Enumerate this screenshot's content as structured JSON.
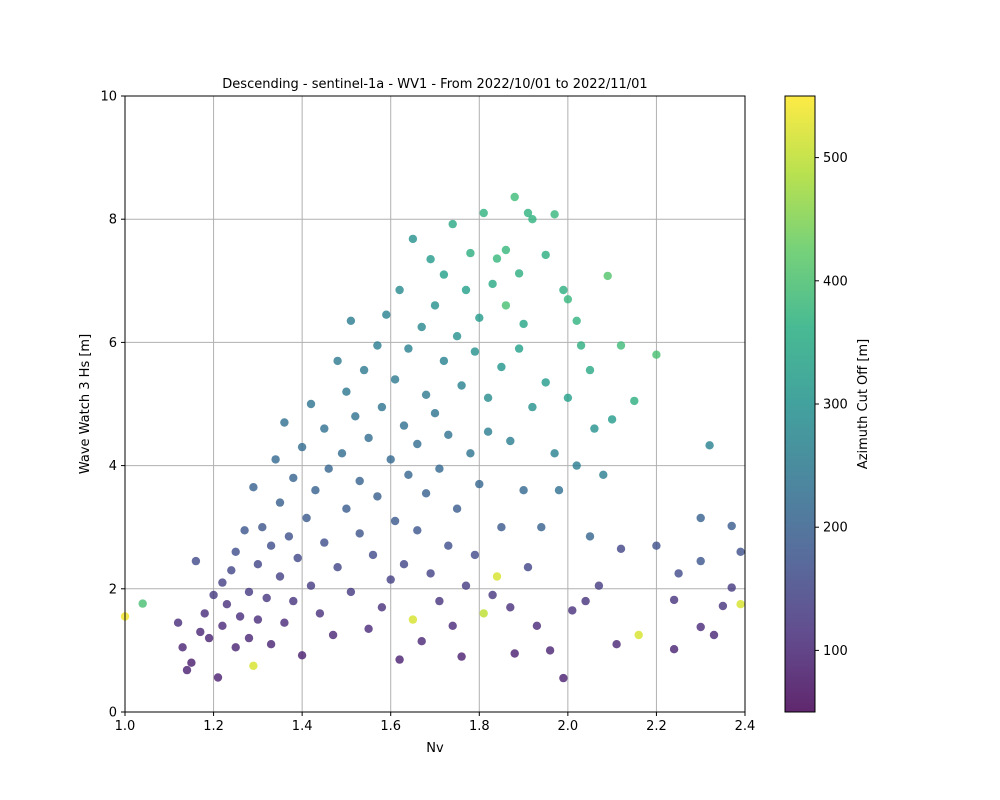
{
  "chart_data": {
    "type": "scatter",
    "title": "Descending - sentinel-1a - WV1 - From 2022/10/01 to 2022/11/01",
    "xlabel": "Nv",
    "ylabel": "Wave Watch 3 Hs [m]",
    "xlim": [
      1.0,
      2.4
    ],
    "ylim": [
      0,
      10
    ],
    "xticks": [
      "1.0",
      "1.2",
      "1.4",
      "1.6",
      "1.8",
      "2.0",
      "2.2",
      "2.4"
    ],
    "yticks": [
      "0",
      "2",
      "4",
      "6",
      "8",
      "10"
    ],
    "grid": true,
    "colormap": "viridis",
    "colorbar": {
      "label": "Azimuth Cut Off [m]",
      "range": [
        50,
        550
      ],
      "ticks": [
        "100",
        "200",
        "300",
        "400",
        "500"
      ]
    },
    "points": [
      [
        1.0,
        1.55,
        540
      ],
      [
        1.04,
        1.76,
        400
      ],
      [
        1.12,
        1.45,
        110
      ],
      [
        1.13,
        1.05,
        95
      ],
      [
        1.14,
        0.68,
        90
      ],
      [
        1.15,
        0.8,
        85
      ],
      [
        1.16,
        2.45,
        160
      ],
      [
        1.17,
        1.3,
        100
      ],
      [
        1.18,
        1.6,
        110
      ],
      [
        1.19,
        1.2,
        95
      ],
      [
        1.2,
        1.9,
        130
      ],
      [
        1.21,
        0.56,
        90
      ],
      [
        1.22,
        1.4,
        105
      ],
      [
        1.22,
        2.1,
        140
      ],
      [
        1.23,
        1.75,
        115
      ],
      [
        1.24,
        2.3,
        150
      ],
      [
        1.25,
        1.05,
        95
      ],
      [
        1.25,
        2.6,
        165
      ],
      [
        1.26,
        1.55,
        110
      ],
      [
        1.27,
        2.95,
        180
      ],
      [
        1.28,
        1.95,
        130
      ],
      [
        1.28,
        1.2,
        100
      ],
      [
        1.29,
        3.65,
        200
      ],
      [
        1.29,
        0.75,
        520
      ],
      [
        1.3,
        2.4,
        150
      ],
      [
        1.3,
        1.5,
        110
      ],
      [
        1.31,
        3.0,
        175
      ],
      [
        1.32,
        1.85,
        125
      ],
      [
        1.33,
        2.7,
        165
      ],
      [
        1.33,
        1.1,
        95
      ],
      [
        1.34,
        4.1,
        215
      ],
      [
        1.35,
        2.2,
        140
      ],
      [
        1.35,
        3.4,
        195
      ],
      [
        1.36,
        4.7,
        230
      ],
      [
        1.36,
        1.45,
        105
      ],
      [
        1.37,
        2.85,
        170
      ],
      [
        1.38,
        3.8,
        205
      ],
      [
        1.38,
        1.8,
        120
      ],
      [
        1.39,
        2.5,
        155
      ],
      [
        1.4,
        4.3,
        220
      ],
      [
        1.4,
        0.92,
        90
      ],
      [
        1.41,
        3.15,
        185
      ],
      [
        1.42,
        5.0,
        240
      ],
      [
        1.42,
        2.05,
        135
      ],
      [
        1.43,
        3.6,
        200
      ],
      [
        1.44,
        1.6,
        115
      ],
      [
        1.45,
        4.6,
        230
      ],
      [
        1.45,
        2.75,
        165
      ],
      [
        1.46,
        3.95,
        210
      ],
      [
        1.47,
        1.25,
        100
      ],
      [
        1.48,
        5.7,
        250
      ],
      [
        1.48,
        2.35,
        150
      ],
      [
        1.49,
        4.2,
        220
      ],
      [
        1.5,
        3.3,
        190
      ],
      [
        1.5,
        5.2,
        245
      ],
      [
        1.51,
        6.35,
        255
      ],
      [
        1.51,
        1.95,
        130
      ],
      [
        1.52,
        4.8,
        235
      ],
      [
        1.53,
        2.9,
        175
      ],
      [
        1.53,
        3.75,
        205
      ],
      [
        1.54,
        5.55,
        250
      ],
      [
        1.55,
        1.35,
        105
      ],
      [
        1.55,
        4.45,
        225
      ],
      [
        1.56,
        2.55,
        160
      ],
      [
        1.57,
        5.95,
        260
      ],
      [
        1.57,
        3.5,
        195
      ],
      [
        1.58,
        4.95,
        240
      ],
      [
        1.58,
        1.7,
        115
      ],
      [
        1.59,
        6.45,
        270
      ],
      [
        1.6,
        2.15,
        140
      ],
      [
        1.6,
        4.1,
        215
      ],
      [
        1.61,
        5.4,
        250
      ],
      [
        1.61,
        3.1,
        185
      ],
      [
        1.62,
        6.85,
        285
      ],
      [
        1.62,
        0.85,
        90
      ],
      [
        1.63,
        4.65,
        230
      ],
      [
        1.63,
        2.4,
        150
      ],
      [
        1.64,
        5.9,
        265
      ],
      [
        1.64,
        3.85,
        210
      ],
      [
        1.65,
        7.68,
        300
      ],
      [
        1.65,
        1.5,
        520
      ],
      [
        1.66,
        4.35,
        225
      ],
      [
        1.66,
        2.95,
        180
      ],
      [
        1.67,
        6.25,
        280
      ],
      [
        1.67,
        1.15,
        100
      ],
      [
        1.68,
        5.15,
        250
      ],
      [
        1.68,
        3.55,
        200
      ],
      [
        1.69,
        7.35,
        320
      ],
      [
        1.69,
        2.25,
        145
      ],
      [
        1.7,
        4.85,
        240
      ],
      [
        1.7,
        6.6,
        300
      ],
      [
        1.71,
        1.8,
        120
      ],
      [
        1.71,
        3.95,
        215
      ],
      [
        1.72,
        5.7,
        270
      ],
      [
        1.72,
        7.1,
        330
      ],
      [
        1.73,
        2.7,
        165
      ],
      [
        1.73,
        4.5,
        235
      ],
      [
        1.74,
        7.92,
        350
      ],
      [
        1.74,
        1.4,
        105
      ],
      [
        1.75,
        6.1,
        300
      ],
      [
        1.75,
        3.3,
        190
      ],
      [
        1.76,
        5.3,
        270
      ],
      [
        1.76,
        0.9,
        90
      ],
      [
        1.77,
        6.85,
        330
      ],
      [
        1.77,
        2.05,
        135
      ],
      [
        1.78,
        4.2,
        240
      ],
      [
        1.78,
        7.45,
        360
      ],
      [
        1.79,
        5.85,
        300
      ],
      [
        1.79,
        2.55,
        160
      ],
      [
        1.8,
        6.4,
        320
      ],
      [
        1.8,
        3.7,
        210
      ],
      [
        1.81,
        8.1,
        370
      ],
      [
        1.81,
        1.6,
        500
      ],
      [
        1.82,
        5.1,
        290
      ],
      [
        1.82,
        4.55,
        260
      ],
      [
        1.83,
        6.95,
        350
      ],
      [
        1.83,
        1.9,
        125
      ],
      [
        1.84,
        7.36,
        380
      ],
      [
        1.84,
        2.2,
        520
      ],
      [
        1.85,
        5.6,
        310
      ],
      [
        1.85,
        3.0,
        185
      ],
      [
        1.86,
        6.6,
        400
      ],
      [
        1.86,
        7.5,
        380
      ],
      [
        1.87,
        4.4,
        260
      ],
      [
        1.87,
        1.7,
        115
      ],
      [
        1.88,
        8.36,
        390
      ],
      [
        1.88,
        0.95,
        90
      ],
      [
        1.89,
        5.9,
        330
      ],
      [
        1.89,
        7.12,
        360
      ],
      [
        1.9,
        3.6,
        215
      ],
      [
        1.9,
        6.3,
        340
      ],
      [
        1.91,
        8.1,
        370
      ],
      [
        1.91,
        2.35,
        150
      ],
      [
        1.92,
        8.0,
        370
      ],
      [
        1.92,
        4.95,
        300
      ],
      [
        1.93,
        1.4,
        105
      ],
      [
        1.94,
        3.0,
        200
      ],
      [
        1.95,
        7.42,
        360
      ],
      [
        1.95,
        5.35,
        320
      ],
      [
        1.96,
        1.0,
        95
      ],
      [
        1.97,
        8.08,
        380
      ],
      [
        1.97,
        4.2,
        270
      ],
      [
        1.98,
        3.6,
        230
      ],
      [
        1.99,
        6.85,
        360
      ],
      [
        1.99,
        0.55,
        90
      ],
      [
        2.0,
        6.7,
        380
      ],
      [
        2.0,
        5.1,
        330
      ],
      [
        2.01,
        1.65,
        115
      ],
      [
        2.02,
        6.35,
        370
      ],
      [
        2.02,
        4.0,
        260
      ],
      [
        2.03,
        5.95,
        360
      ],
      [
        2.04,
        1.8,
        120
      ],
      [
        2.05,
        2.85,
        210
      ],
      [
        2.05,
        5.55,
        350
      ],
      [
        2.06,
        4.6,
        300
      ],
      [
        2.07,
        2.05,
        135
      ],
      [
        2.08,
        3.85,
        260
      ],
      [
        2.09,
        7.08,
        410
      ],
      [
        2.1,
        4.75,
        320
      ],
      [
        2.11,
        1.1,
        100
      ],
      [
        2.12,
        5.95,
        390
      ],
      [
        2.12,
        2.65,
        150
      ],
      [
        2.15,
        5.05,
        360
      ],
      [
        2.16,
        1.25,
        520
      ],
      [
        2.2,
        5.8,
        400
      ],
      [
        2.2,
        2.7,
        170
      ],
      [
        2.24,
        1.82,
        120
      ],
      [
        2.24,
        1.02,
        95
      ],
      [
        2.25,
        2.25,
        160
      ],
      [
        2.3,
        2.45,
        180
      ],
      [
        2.3,
        3.15,
        200
      ],
      [
        2.3,
        1.38,
        105
      ],
      [
        2.32,
        4.33,
        270
      ],
      [
        2.33,
        1.25,
        100
      ],
      [
        2.35,
        1.72,
        120
      ],
      [
        2.37,
        3.02,
        190
      ],
      [
        2.37,
        2.02,
        130
      ],
      [
        2.39,
        2.6,
        170
      ],
      [
        2.39,
        1.75,
        520
      ]
    ]
  }
}
